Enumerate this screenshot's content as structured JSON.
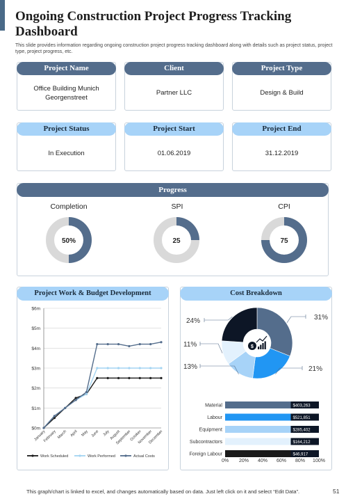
{
  "header": {
    "title": "Ongoing Construction Project Progress Tracking Dashboard",
    "subtitle": "This slide provides information regarding ongoing construction project progress tracking dashboard along with details such as project status, project type,  project progress, etc."
  },
  "cards": [
    {
      "label": "Project Name",
      "value": "Office Building Munich Georgenstreet",
      "style": "dark"
    },
    {
      "label": "Client",
      "value": "Partner LLC",
      "style": "dark"
    },
    {
      "label": "Project Type",
      "value": "Design & Build",
      "style": "dark"
    },
    {
      "label": "Project Status",
      "value": "In Execution",
      "style": "light"
    },
    {
      "label": "Project Start",
      "value": "01.06.2019",
      "style": "light"
    },
    {
      "label": "Project End",
      "value": "31.12.2019",
      "style": "light"
    }
  ],
  "progress": {
    "title": "Progress",
    "gauges": [
      {
        "label": "Completion",
        "value_text": "50%",
        "fraction": 0.5
      },
      {
        "label": "SPI",
        "value_text": "25",
        "fraction": 0.25
      },
      {
        "label": "CPI",
        "value_text": "75",
        "fraction": 0.75
      }
    ]
  },
  "panels": {
    "budget_title": "Project Work & Budget Development",
    "cost_title": "Cost Breakdown"
  },
  "colors": {
    "dark_pill": "#546d8c",
    "light_pill": "#a7d3f8",
    "gauge_fill": "#546d8c",
    "gauge_track": "#d9d9d9",
    "work_scheduled": "#1a1a1a",
    "work_performed": "#a3d4f2",
    "actual_costs": "#546d8c"
  },
  "chart_data": [
    {
      "type": "line",
      "x": [
        "January",
        "February",
        "March",
        "April",
        "May",
        "June",
        "July",
        "August",
        "September",
        "October",
        "November",
        "December"
      ],
      "ylim": [
        0,
        6
      ],
      "yticks": [
        "$0m",
        "$1m",
        "$2m",
        "$3m",
        "$4m",
        "$5m",
        "$6m"
      ],
      "grid": true,
      "legend_position": "bottom",
      "series": [
        {
          "name": "Work Scheduled",
          "color": "#1a1a1a",
          "values": [
            0,
            0.5,
            1.0,
            1.5,
            1.7,
            2.5,
            2.5,
            2.5,
            2.5,
            2.5,
            2.5,
            2.5
          ]
        },
        {
          "name": "Work Performed",
          "color": "#a3d4f2",
          "values": [
            0,
            0.6,
            1.0,
            1.4,
            1.7,
            3.0,
            3.0,
            3.0,
            3.0,
            3.0,
            3.0,
            3.0
          ]
        },
        {
          "name": "Actual Costs",
          "color": "#546d8c",
          "values": [
            0,
            0.6,
            1.0,
            1.4,
            1.8,
            4.2,
            4.2,
            4.2,
            4.1,
            4.2,
            4.2,
            4.3
          ]
        }
      ]
    },
    {
      "type": "pie",
      "donut": true,
      "values": [
        31,
        21,
        13,
        11,
        24
      ],
      "labels": [
        "31%",
        "21%",
        "13%",
        "11%",
        "24%"
      ],
      "colors": [
        "#546d8c",
        "#2196f3",
        "#a7d3f8",
        "#e3f1fd",
        "#0d1626"
      ],
      "center_icon": "money-growth-icon"
    },
    {
      "type": "bar",
      "orientation": "horizontal",
      "categories": [
        "Material",
        "Labour",
        "Equipment",
        "Subcontractors",
        "Foreign Labour"
      ],
      "percent": [
        70,
        70,
        70,
        70,
        70
      ],
      "values_text": [
        "$403,263",
        "$521,851",
        "$285,402",
        "$164,212",
        "$46,917"
      ],
      "colors": [
        "#546d8c",
        "#2196f3",
        "#a7d3f8",
        "#e3f1fd",
        "#1a1a1a"
      ],
      "xticks": [
        "0%",
        "20%",
        "40%",
        "60%",
        "80%",
        "100%"
      ],
      "xlim": [
        0,
        100
      ]
    }
  ],
  "footer": {
    "text": "This graph/chart is linked to excel, and changes automatically based on data. Just left click on it and select “Edit Data”.",
    "page": "51"
  }
}
